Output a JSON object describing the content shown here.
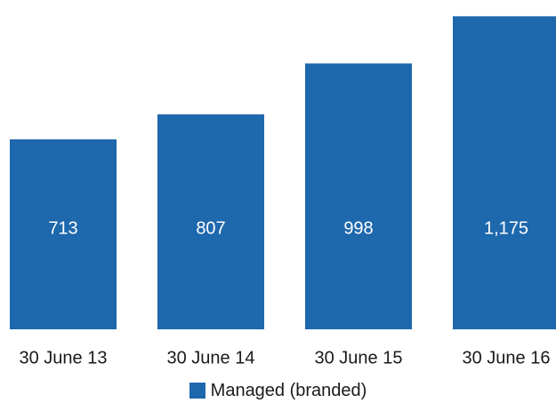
{
  "chart_data": {
    "type": "bar",
    "categories": [
      "30 June 13",
      "30 June 14",
      "30 June 15",
      "30 June 16"
    ],
    "series": [
      {
        "name": "Managed (branded)",
        "values": [
          713,
          807,
          998,
          1175
        ],
        "value_labels": [
          "713",
          "807",
          "998",
          "1,175"
        ]
      }
    ],
    "colors": {
      "bar": "#1e68ad"
    },
    "legend": "bottom-center",
    "grid": false
  }
}
